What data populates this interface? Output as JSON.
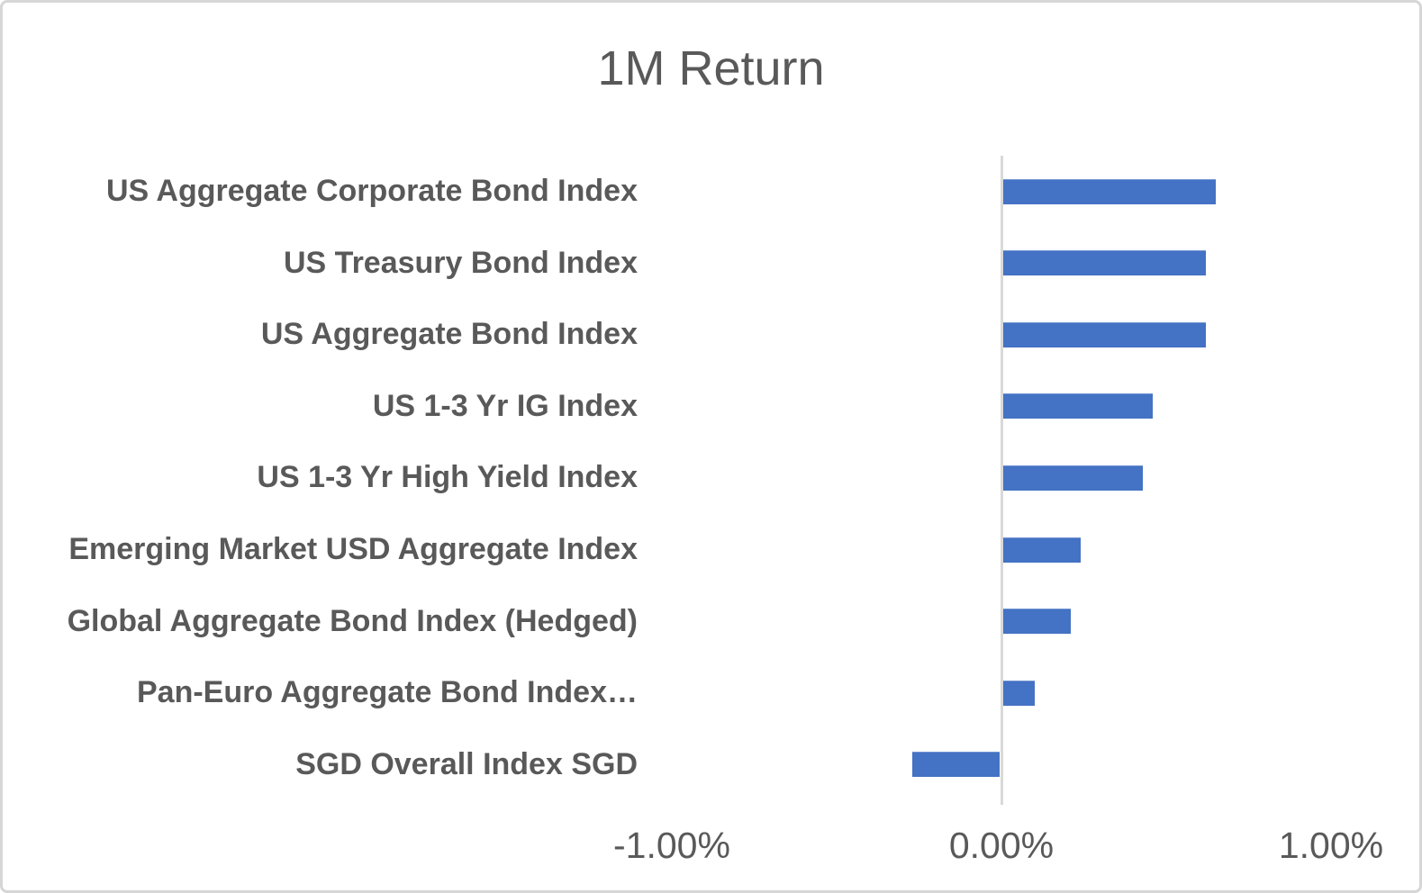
{
  "page": {
    "background_color": "#ffffff",
    "frame_border_color": "#d6d6d6"
  },
  "chart_data": {
    "type": "bar",
    "orientation": "horizontal",
    "title": "1M Return",
    "categories": [
      "US Aggregate Corporate Bond Index",
      "US Treasury Bond Index",
      "US Aggregate Bond Index",
      "US 1-3 Yr IG Index",
      "US 1-3 Yr High Yield Index",
      "Emerging Market USD Aggregate Index",
      "Global Aggregate Bond Index (Hedged)",
      "Pan-Euro Aggregate Bond Index…",
      "SGD Overall Index SGD"
    ],
    "values": [
      0.65,
      0.62,
      0.62,
      0.46,
      0.43,
      0.24,
      0.21,
      0.1,
      -0.27
    ],
    "value_unit": "%",
    "xlabel": "",
    "ylabel": "",
    "xlim": [
      -1.0,
      1.0
    ],
    "x_tick_labels": [
      "-1.00%",
      "0.00%",
      "1.00%"
    ],
    "x_tick_values": [
      -1.0,
      0.0,
      1.0
    ],
    "grid": false,
    "legend": false,
    "bar_color": "#4472C4",
    "axis_line_color": "#d9d9d9",
    "text_color": "#595959",
    "title_color": "#595959"
  }
}
